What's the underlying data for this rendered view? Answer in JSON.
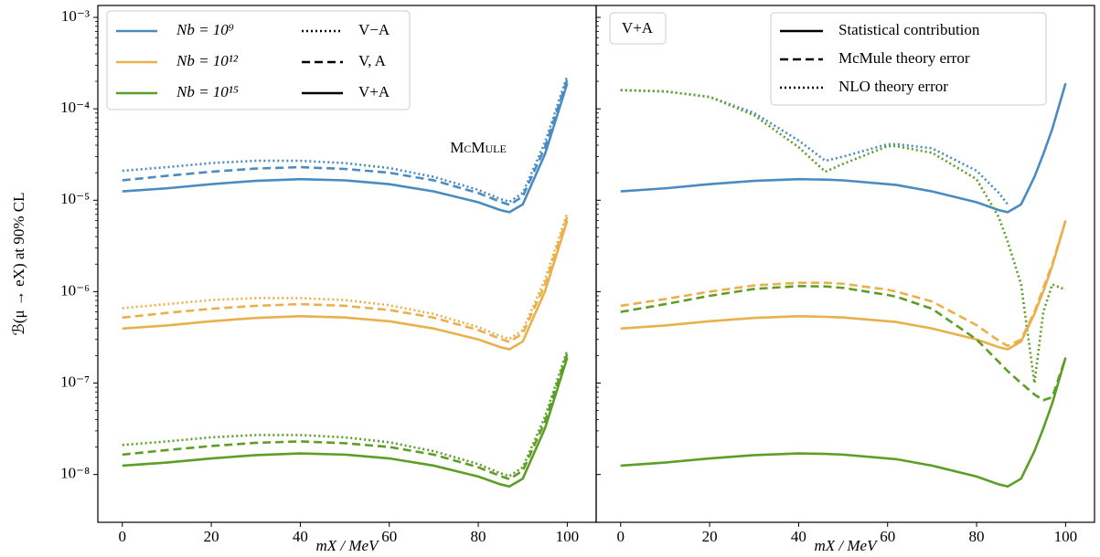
{
  "chart_data": [
    {
      "type": "line",
      "ylabel": "ℬ(μ → eX) at 90% CL",
      "xlabel": "mX / MeV",
      "log_y": true,
      "xlim": [
        -5.5,
        106.5
      ],
      "xticks": [
        0,
        20,
        40,
        60,
        80,
        100
      ],
      "ylim": [
        3e-09,
        0.00135
      ],
      "yticks": [
        {
          "value": 1e-08,
          "label": "10⁻⁸"
        },
        {
          "value": 1e-07,
          "label": "10⁻⁷"
        },
        {
          "value": 1e-06,
          "label": "10⁻⁶"
        },
        {
          "value": 1e-05,
          "label": "10⁻⁵"
        },
        {
          "value": 0.0001,
          "label": "10⁻⁴"
        },
        {
          "value": 0.001,
          "label": "10⁻³"
        }
      ],
      "watermark": "McMule",
      "legend": {
        "colors": [
          {
            "label": "Nb = 10⁹",
            "color": "#4a8cc1"
          },
          {
            "label": "Nb = 10¹²",
            "color": "#e9b04b"
          },
          {
            "label": "Nb = 10¹⁵",
            "color": "#5d9e27"
          }
        ],
        "styles": [
          {
            "label": "V−A",
            "dash": "dotted"
          },
          {
            "label": "V, A",
            "dash": "dashed"
          },
          {
            "label": "V+A",
            "dash": "solid"
          }
        ]
      },
      "x": [
        0,
        10,
        20,
        30,
        40,
        50,
        60,
        70,
        80,
        85,
        87,
        90,
        95,
        100
      ],
      "series": [
        {
          "color": "#4a8cc1",
          "dash": "solid",
          "values": [
            1.25e-05,
            1.35e-05,
            1.5e-05,
            1.63e-05,
            1.7e-05,
            1.65e-05,
            1.5e-05,
            1.25e-05,
            9.5e-06,
            7.8e-06,
            7.4e-06,
            9e-06,
            3.2e-05,
            0.00019
          ]
        },
        {
          "color": "#4a8cc1",
          "dash": "dashed",
          "values": [
            1.65e-05,
            1.85e-05,
            2.05e-05,
            2.22e-05,
            2.3e-05,
            2.2e-05,
            2e-05,
            1.65e-05,
            1.2e-05,
            9.6e-06,
            8.9e-06,
            1.1e-05,
            3.8e-05,
            0.00021
          ]
        },
        {
          "color": "#4a8cc1",
          "dash": "dotted",
          "values": [
            2.1e-05,
            2.3e-05,
            2.55e-05,
            2.7e-05,
            2.7e-05,
            2.55e-05,
            2.25e-05,
            1.8e-05,
            1.3e-05,
            1.03e-05,
            9.6e-06,
            1.2e-05,
            4.3e-05,
            0.00023
          ]
        },
        {
          "color": "#e9b04b",
          "dash": "solid",
          "values": [
            3.95e-07,
            4.27e-07,
            4.75e-07,
            5.16e-07,
            5.38e-07,
            5.22e-07,
            4.75e-07,
            3.95e-07,
            3e-07,
            2.47e-07,
            2.34e-07,
            2.85e-07,
            1.01e-06,
            6e-06
          ]
        },
        {
          "color": "#e9b04b",
          "dash": "dashed",
          "values": [
            5.2e-07,
            5.85e-07,
            6.5e-07,
            7e-07,
            7.3e-07,
            7e-07,
            6.3e-07,
            5.2e-07,
            3.8e-07,
            3.04e-07,
            2.82e-07,
            3.5e-07,
            1.2e-06,
            6.6e-06
          ]
        },
        {
          "color": "#e9b04b",
          "dash": "dotted",
          "values": [
            6.6e-07,
            7.3e-07,
            8.1e-07,
            8.5e-07,
            8.5e-07,
            8.1e-07,
            7.1e-07,
            5.7e-07,
            4.1e-07,
            3.26e-07,
            3.04e-07,
            3.8e-07,
            1.36e-06,
            7.3e-06
          ]
        },
        {
          "color": "#5d9e27",
          "dash": "solid",
          "values": [
            1.25e-08,
            1.35e-08,
            1.5e-08,
            1.63e-08,
            1.7e-08,
            1.65e-08,
            1.5e-08,
            1.25e-08,
            9.5e-09,
            7.8e-09,
            7.4e-09,
            9e-09,
            3.2e-08,
            1.9e-07
          ]
        },
        {
          "color": "#5d9e27",
          "dash": "dashed",
          "values": [
            1.65e-08,
            1.85e-08,
            2.05e-08,
            2.22e-08,
            2.3e-08,
            2.2e-08,
            2e-08,
            1.65e-08,
            1.2e-08,
            9.6e-09,
            8.9e-09,
            1.1e-08,
            3.8e-08,
            2.1e-07
          ]
        },
        {
          "color": "#5d9e27",
          "dash": "dotted",
          "values": [
            2.1e-08,
            2.3e-08,
            2.55e-08,
            2.7e-08,
            2.7e-08,
            2.55e-08,
            2.25e-08,
            1.8e-08,
            1.3e-08,
            1.03e-08,
            9.6e-09,
            1.2e-08,
            4.3e-08,
            2.3e-07
          ]
        }
      ]
    },
    {
      "type": "line",
      "xlabel": "mX / MeV",
      "log_y": true,
      "annotation": "V+A",
      "xlim": [
        -5.5,
        106.5
      ],
      "xticks": [
        0,
        20,
        40,
        60,
        80,
        100
      ],
      "ylim": [
        3e-09,
        0.00135
      ],
      "yticks": [
        1e-08,
        1e-07,
        1e-06,
        1e-05,
        0.0001,
        0.001
      ],
      "legend": {
        "styles": [
          {
            "label": "Statistical contribution",
            "dash": "solid"
          },
          {
            "label": "McMule theory error",
            "dash": "dashed"
          },
          {
            "label": "NLO theory error",
            "dash": "dotted"
          }
        ]
      },
      "x": [
        0,
        10,
        20,
        30,
        40,
        46,
        50,
        60,
        62,
        70,
        80,
        85,
        87,
        90,
        93,
        95,
        97,
        100
      ],
      "series": [
        {
          "color": "#4a8cc1",
          "dash": "solid",
          "values": [
            1.25e-05,
            1.35e-05,
            1.5e-05,
            1.63e-05,
            1.7e-05,
            1.68e-05,
            1.65e-05,
            1.5e-05,
            1.47e-05,
            1.25e-05,
            9.5e-06,
            7.8e-06,
            7.4e-06,
            9e-06,
            1.8e-05,
            3.2e-05,
            6e-05,
            0.00019
          ]
        },
        {
          "color": "#4a8cc1",
          "dash": "dotted",
          "values": [
            0.00016,
            0.000155,
            0.000135,
            9e-05,
            4.5e-05,
            2.7e-05,
            3e-05,
            4.1e-05,
            4.1e-05,
            3.7e-05,
            2.1e-05,
            1.2e-05,
            9e-06,
            null,
            null,
            null,
            null,
            null
          ]
        },
        {
          "color": "#5d9e27",
          "dash": "dotted",
          "values": [
            0.00016,
            0.000155,
            0.000135,
            8.5e-05,
            3.8e-05,
            2.05e-05,
            2.5e-05,
            3.9e-05,
            3.9e-05,
            3.3e-05,
            1.7e-05,
            6.5e-06,
            3.5e-06,
            1.2e-06,
            1e-07,
            6e-07,
            1.2e-06,
            1.05e-06
          ]
        },
        {
          "color": "#e9b04b",
          "dash": "solid",
          "values": [
            3.95e-07,
            4.27e-07,
            4.75e-07,
            5.16e-07,
            5.38e-07,
            5.3e-07,
            5.22e-07,
            4.75e-07,
            4.65e-07,
            3.95e-07,
            3e-07,
            2.47e-07,
            2.34e-07,
            2.85e-07,
            5.7e-07,
            1.01e-06,
            1.9e-06,
            6e-06
          ]
        },
        {
          "color": "#e9b04b",
          "dash": "dashed",
          "values": [
            7e-07,
            8.3e-07,
            1e-06,
            1.17e-06,
            1.25e-06,
            1.25e-06,
            1.22e-06,
            1.05e-06,
            1e-06,
            7.8e-07,
            4.3e-07,
            2.9e-07,
            2.55e-07,
            3e-07,
            6e-07,
            1.1e-06,
            2e-06,
            6e-06
          ]
        },
        {
          "color": "#5d9e27",
          "dash": "solid",
          "values": [
            1.25e-08,
            1.35e-08,
            1.5e-08,
            1.63e-08,
            1.7e-08,
            1.68e-08,
            1.65e-08,
            1.5e-08,
            1.47e-08,
            1.25e-08,
            9.5e-09,
            7.8e-09,
            7.4e-09,
            9e-09,
            1.8e-08,
            3.2e-08,
            6e-08,
            1.9e-07
          ]
        },
        {
          "color": "#5d9e27",
          "dash": "dashed",
          "values": [
            6e-07,
            7.3e-07,
            9e-07,
            1.07e-06,
            1.15e-06,
            1.14e-06,
            1.1e-06,
            9.2e-07,
            8.8e-07,
            6.5e-07,
            3e-07,
            1.7e-07,
            1.35e-07,
            1e-07,
            7.5e-08,
            6.5e-08,
            7e-08,
            1.9e-07
          ]
        }
      ]
    }
  ]
}
